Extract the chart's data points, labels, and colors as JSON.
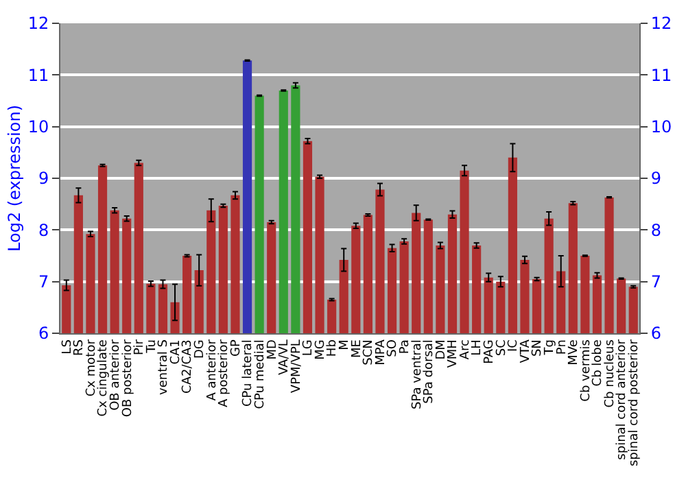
{
  "chart_data": {
    "type": "bar",
    "ylabel": "Log2 (expression)",
    "categories": [
      "LS",
      "RS",
      "Cx motor",
      "Cx cingulate",
      "OB anterior",
      "OB posterior",
      "Pir",
      "Tu",
      "ventral S",
      "CA1",
      "CA2/CA3",
      "DG",
      "A anterior",
      "A posterior",
      "GP",
      "CPu lateral",
      "CPu medial",
      "MD",
      "VA/VL",
      "VPM/VPL",
      "LG",
      "MG",
      "Hb",
      "M",
      "ME",
      "SCN",
      "MPA",
      "SO",
      "Pa",
      "SPa ventral",
      "SPa dorsal",
      "DM",
      "VMH",
      "Arc",
      "LH",
      "PAG",
      "SC",
      "IC",
      "VTA",
      "SN",
      "Tg",
      "Pn",
      "MVe",
      "Cb vermis",
      "Cb lobe",
      "Cb nucleus",
      "spinal cord anterior",
      "spinal cord posterior"
    ],
    "values": [
      6.93,
      8.67,
      7.92,
      9.25,
      8.38,
      8.22,
      9.3,
      6.96,
      6.95,
      6.6,
      7.5,
      7.22,
      8.38,
      8.47,
      8.67,
      11.28,
      10.6,
      8.15,
      10.7,
      10.8,
      9.72,
      9.03,
      6.65,
      7.42,
      8.08,
      8.29,
      8.78,
      7.65,
      7.78,
      8.33,
      8.2,
      7.7,
      8.3,
      9.15,
      7.7,
      7.08,
      7.0,
      9.4,
      7.42,
      7.05,
      8.22,
      7.2,
      8.52,
      7.5,
      7.12,
      8.63,
      7.06,
      6.9
    ],
    "errors": [
      0.1,
      0.14,
      0.05,
      0.02,
      0.05,
      0.05,
      0.05,
      0.05,
      0.08,
      0.35,
      0.02,
      0.3,
      0.22,
      0.03,
      0.07,
      0.01,
      0.01,
      0.03,
      0.01,
      0.05,
      0.05,
      0.03,
      0.02,
      0.22,
      0.05,
      0.02,
      0.12,
      0.07,
      0.05,
      0.15,
      0.01,
      0.06,
      0.07,
      0.1,
      0.05,
      0.08,
      0.1,
      0.27,
      0.07,
      0.03,
      0.13,
      0.3,
      0.03,
      0.01,
      0.05,
      0.01,
      0.01,
      0.02
    ],
    "colors": [
      "#b03030",
      "#b03030",
      "#b03030",
      "#b03030",
      "#b03030",
      "#b03030",
      "#b03030",
      "#b03030",
      "#b03030",
      "#b03030",
      "#b03030",
      "#b03030",
      "#b03030",
      "#b03030",
      "#b03030",
      "#3535b5",
      "#35a035",
      "#b03030",
      "#35a035",
      "#35a035",
      "#b03030",
      "#b03030",
      "#b03030",
      "#b03030",
      "#b03030",
      "#b03030",
      "#b03030",
      "#b03030",
      "#b03030",
      "#b03030",
      "#b03030",
      "#b03030",
      "#b03030",
      "#b03030",
      "#b03030",
      "#b03030",
      "#b03030",
      "#b03030",
      "#b03030",
      "#b03030",
      "#b03030",
      "#b03030",
      "#b03030",
      "#b03030",
      "#b03030",
      "#b03030",
      "#b03030",
      "#b03030"
    ],
    "ylim": [
      6,
      12
    ],
    "yticks": [
      6,
      7,
      8,
      9,
      10,
      11,
      12
    ],
    "y2lim": [
      6,
      12
    ],
    "y2ticks": [
      6,
      7,
      8,
      9,
      10,
      11,
      12
    ],
    "grid": "y"
  }
}
